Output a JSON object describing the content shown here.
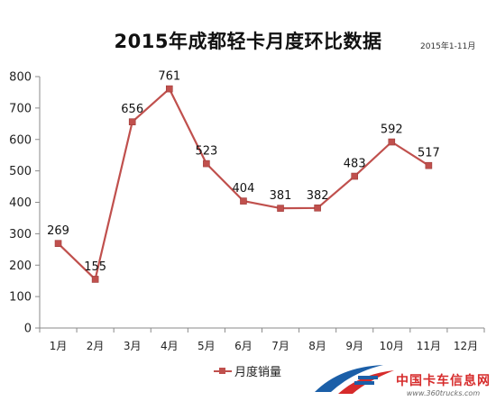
{
  "chart_data": {
    "type": "line",
    "title": "2015年成都轻卡月度环比数据",
    "subtitle": "2015年1-11月",
    "categories": [
      "1月",
      "2月",
      "3月",
      "4月",
      "5月",
      "6月",
      "7月",
      "8月",
      "9月",
      "10月",
      "11月",
      "12月"
    ],
    "series": [
      {
        "name": "月度销量",
        "values": [
          269,
          155,
          656,
          761,
          523,
          404,
          381,
          382,
          483,
          592,
          517,
          null
        ],
        "color": "#c0504d"
      }
    ],
    "ylim": [
      0,
      800
    ],
    "yticks": [
      0,
      100,
      200,
      300,
      400,
      500,
      600,
      700,
      800
    ],
    "grid": false,
    "legend_position": "bottom"
  },
  "watermark": {
    "name": "中国卡车信息网",
    "url": "www.360trucks.com",
    "color": "#d62b2b",
    "icon": "truck-logo-icon"
  }
}
